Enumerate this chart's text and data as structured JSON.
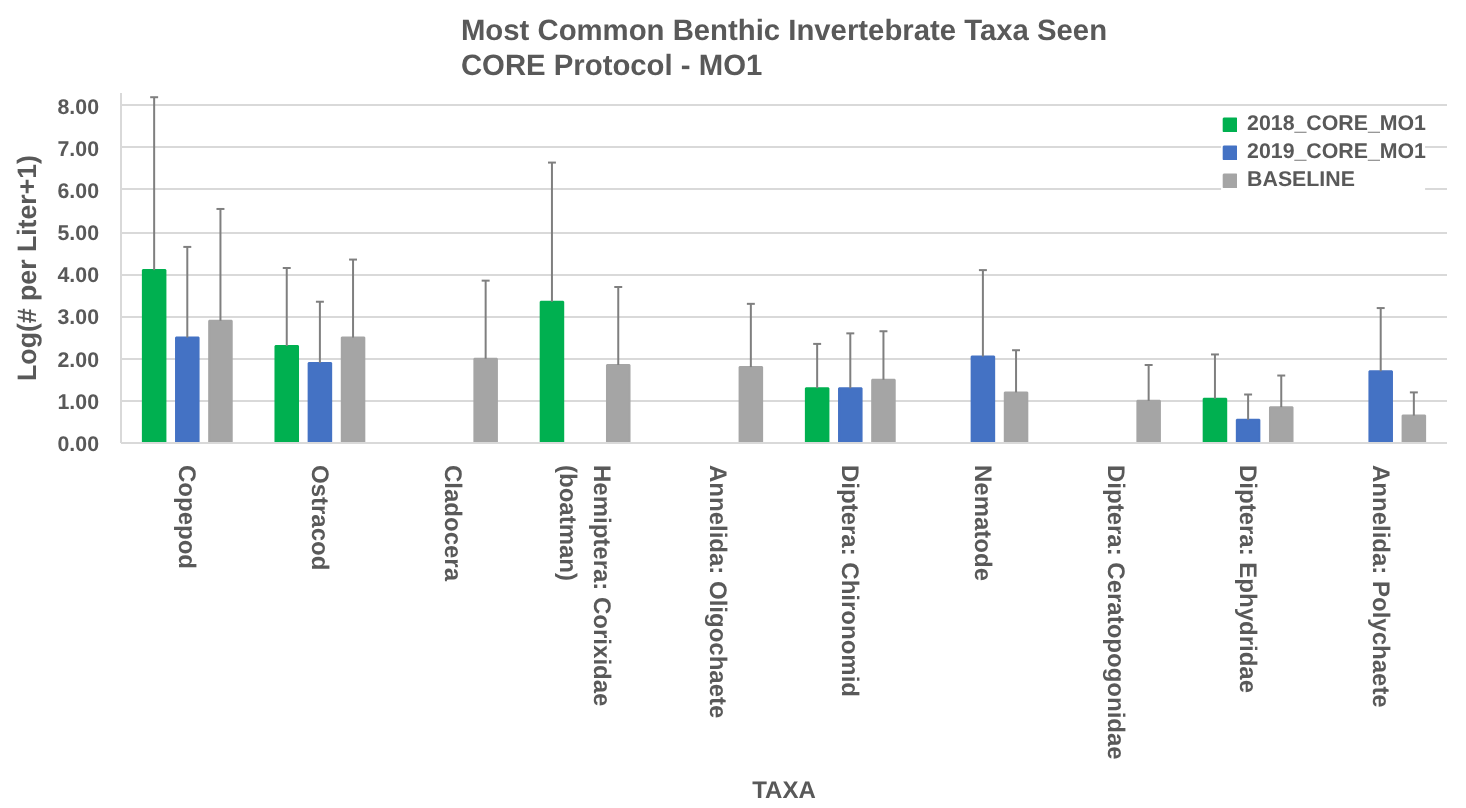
{
  "chart_data": {
    "type": "bar",
    "title": "Most Common Benthic Invertebrate Taxa Seen\nCORE Protocol - MO1",
    "xlabel": "TAXA",
    "ylabel": "Log(# per Liter+1)",
    "categories": [
      "Copepod",
      "Ostracod",
      "Cladocera",
      "Hemiptera: Corixidae\n(boatman)",
      "Annelida: Oligochaete",
      "Diptera: Chironomid",
      "Nematode",
      "Diptera: Ceratopogonidae",
      "Diptera: Ephydridae",
      "Annelida: Polychaete"
    ],
    "series": [
      {
        "name": "2018_CORE_MO1",
        "color": "#00b050",
        "values": [
          4.1,
          2.3,
          null,
          3.35,
          null,
          1.3,
          null,
          null,
          1.05,
          null
        ],
        "errors": [
          [
            4.1,
            8.2
          ],
          [
            2.3,
            4.15
          ],
          null,
          [
            3.35,
            6.65
          ],
          null,
          [
            1.3,
            2.35
          ],
          null,
          null,
          [
            1.05,
            2.1
          ],
          null
        ]
      },
      {
        "name": "2019_CORE_MO1",
        "color": "#4472c4",
        "values": [
          2.5,
          1.9,
          null,
          null,
          null,
          1.3,
          2.05,
          null,
          0.55,
          1.7
        ],
        "errors": [
          [
            2.5,
            4.65
          ],
          [
            1.9,
            3.35
          ],
          null,
          null,
          null,
          [
            1.3,
            2.6
          ],
          [
            2.05,
            4.1
          ],
          null,
          [
            0.55,
            1.15
          ],
          [
            1.7,
            3.2
          ]
        ]
      },
      {
        "name": "BASELINE",
        "color": "#a5a5a5",
        "values": [
          2.9,
          2.5,
          2.0,
          1.85,
          1.8,
          1.5,
          1.2,
          1.0,
          0.85,
          0.65
        ],
        "errors": [
          [
            2.9,
            5.55
          ],
          [
            2.5,
            4.35
          ],
          [
            2.0,
            3.85
          ],
          [
            1.85,
            3.7
          ],
          [
            1.8,
            3.3
          ],
          [
            1.5,
            2.65
          ],
          [
            1.2,
            2.2
          ],
          [
            1.0,
            1.85
          ],
          [
            0.85,
            1.6
          ],
          [
            0.65,
            1.2
          ]
        ]
      }
    ],
    "ylim": [
      0,
      8.3
    ],
    "yticks": [
      {
        "value": 0,
        "label": "0.00"
      },
      {
        "value": 1,
        "label": "1.00"
      },
      {
        "value": 2,
        "label": "2.00"
      },
      {
        "value": 3,
        "label": "3.00"
      },
      {
        "value": 4,
        "label": "4.00"
      },
      {
        "value": 5,
        "label": "5.00"
      },
      {
        "value": 6,
        "label": "6.00"
      },
      {
        "value": 7,
        "label": "7.00"
      },
      {
        "value": 8,
        "label": "8.00"
      }
    ],
    "grid": "y",
    "legend": "top right"
  }
}
